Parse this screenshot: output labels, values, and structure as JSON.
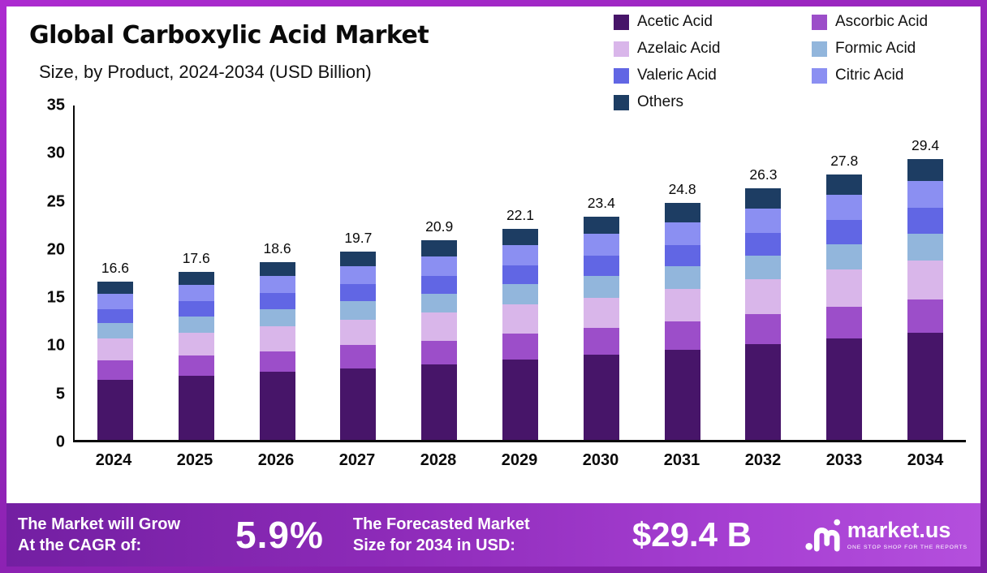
{
  "title": "Global Carboxylic Acid Market",
  "subtitle": "Size, by Product, 2024-2034 (USD Billion)",
  "colors": {
    "frame": "#9b27c1",
    "banner_gradient_start": "#731fa2",
    "banner_gradient_end": "#b44fdd",
    "axis": "#0a0a0a"
  },
  "chart_data": {
    "type": "bar",
    "stacked": true,
    "title": "Global Carboxylic Acid Market Size, by Product, 2024-2034 (USD Billion)",
    "xlabel": "",
    "ylabel": "",
    "ylim": [
      0,
      35
    ],
    "y_ticks": [
      0,
      5,
      10,
      15,
      20,
      25,
      30,
      35
    ],
    "grid": false,
    "legend_position": "top-right",
    "categories": [
      "2024",
      "2025",
      "2026",
      "2027",
      "2028",
      "2029",
      "2030",
      "2031",
      "2032",
      "2033",
      "2034"
    ],
    "totals": [
      16.6,
      17.6,
      18.6,
      19.7,
      20.9,
      22.1,
      23.4,
      24.8,
      26.3,
      27.8,
      29.4
    ],
    "series": [
      {
        "name": "Acetic Acid",
        "color": "#471569",
        "values": [
          6.3,
          6.7,
          7.1,
          7.5,
          7.9,
          8.4,
          8.9,
          9.4,
          10.0,
          10.6,
          11.2
        ]
      },
      {
        "name": "Ascorbic Acid",
        "color": "#9c4ec9",
        "values": [
          2.0,
          2.1,
          2.2,
          2.4,
          2.5,
          2.7,
          2.8,
          3.0,
          3.2,
          3.3,
          3.5
        ]
      },
      {
        "name": "Azelaic Acid",
        "color": "#d9b6ea",
        "values": [
          2.3,
          2.4,
          2.6,
          2.7,
          2.9,
          3.1,
          3.2,
          3.4,
          3.6,
          3.9,
          4.1
        ]
      },
      {
        "name": "Formic Acid",
        "color": "#92b6dc",
        "values": [
          1.6,
          1.7,
          1.8,
          1.9,
          2.0,
          2.1,
          2.3,
          2.4,
          2.5,
          2.7,
          2.8
        ]
      },
      {
        "name": "Valeric Acid",
        "color": "#6166e4",
        "values": [
          1.5,
          1.6,
          1.7,
          1.8,
          1.9,
          2.0,
          2.1,
          2.2,
          2.4,
          2.5,
          2.7
        ]
      },
      {
        "name": "Citric Acid",
        "color": "#8b8ff2",
        "values": [
          1.6,
          1.7,
          1.8,
          1.9,
          2.0,
          2.1,
          2.3,
          2.4,
          2.5,
          2.7,
          2.8
        ]
      },
      {
        "name": "Others",
        "color": "#1d3d63",
        "values": [
          1.3,
          1.4,
          1.4,
          1.5,
          1.7,
          1.7,
          1.8,
          2.0,
          2.1,
          2.1,
          2.3
        ]
      }
    ]
  },
  "footer": {
    "cagr_line1": "The Market will Grow",
    "cagr_line2": "At the CAGR of:",
    "cagr_value": "5.9%",
    "forecast_line1": "The Forecasted Market",
    "forecast_line2": "Size for 2034 in USD:",
    "forecast_value": "$29.4 B",
    "brand": "market.us",
    "brand_tagline": "ONE STOP SHOP FOR THE REPORTS"
  }
}
